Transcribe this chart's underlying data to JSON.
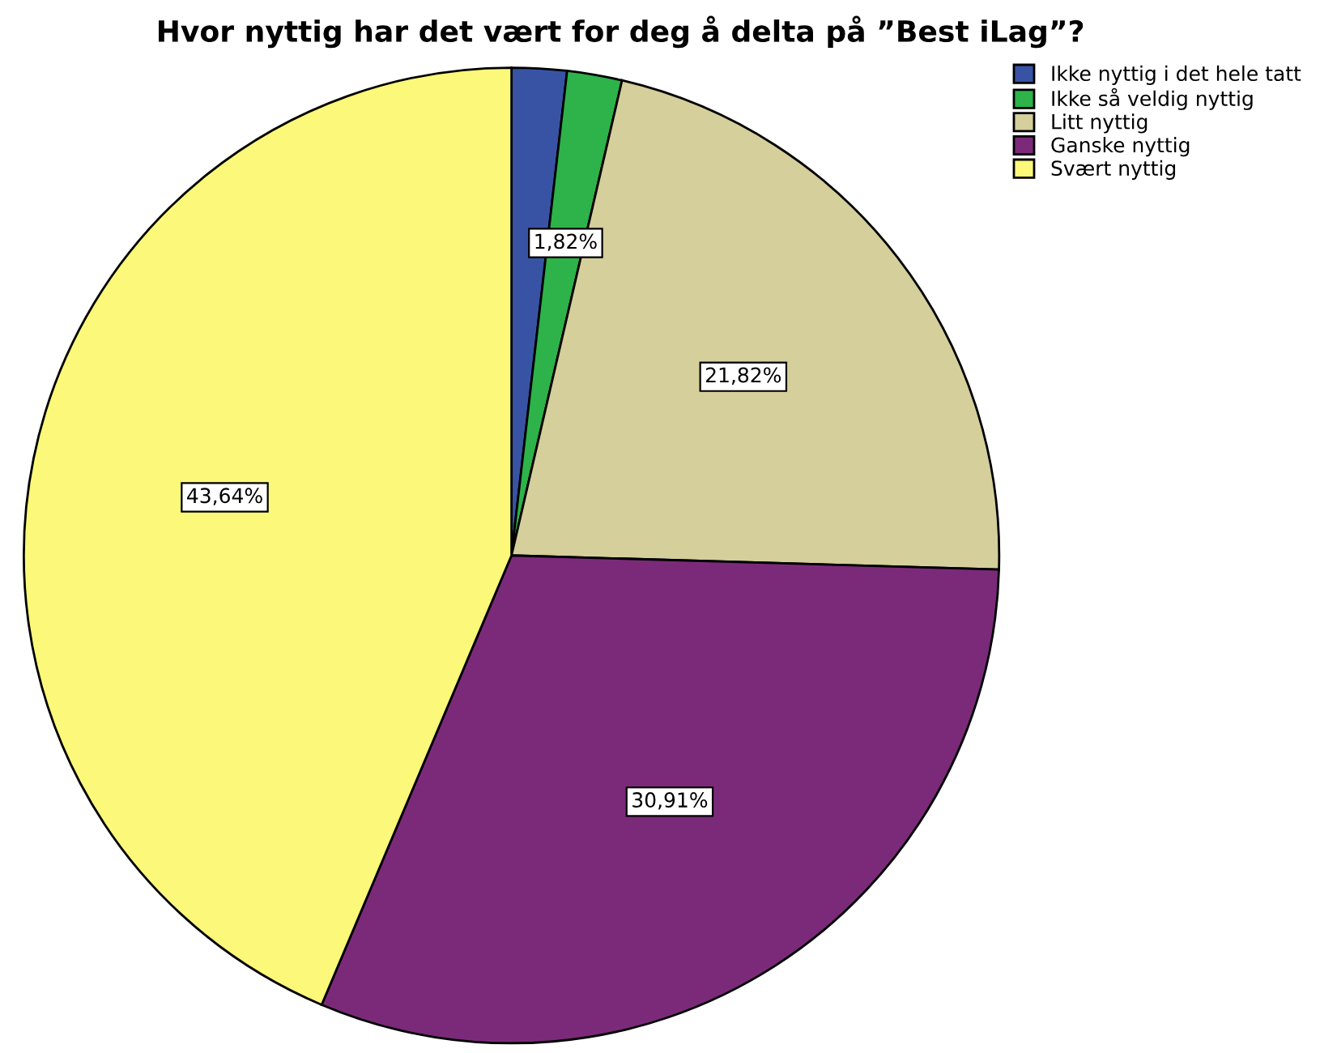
{
  "chart_data": {
    "type": "pie",
    "title": "Hvor nyttig har det vært for deg å delta på ”Best iLag”?",
    "categories": [
      "Ikke nyttig i det hele tatt",
      "Ikke så veldig nyttig",
      "Litt nyttig",
      "Ganske nyttig",
      "Svært nyttig"
    ],
    "values": [
      1.82,
      1.82,
      21.82,
      30.91,
      43.64
    ],
    "colors": [
      "#3953a4",
      "#2db34a",
      "#d4cf9b",
      "#7b2a7a",
      "#fbf87a"
    ],
    "value_labels": [
      null,
      "1,82%",
      "21,82%",
      "30,91%",
      "43,64%"
    ],
    "legend": "top right"
  }
}
